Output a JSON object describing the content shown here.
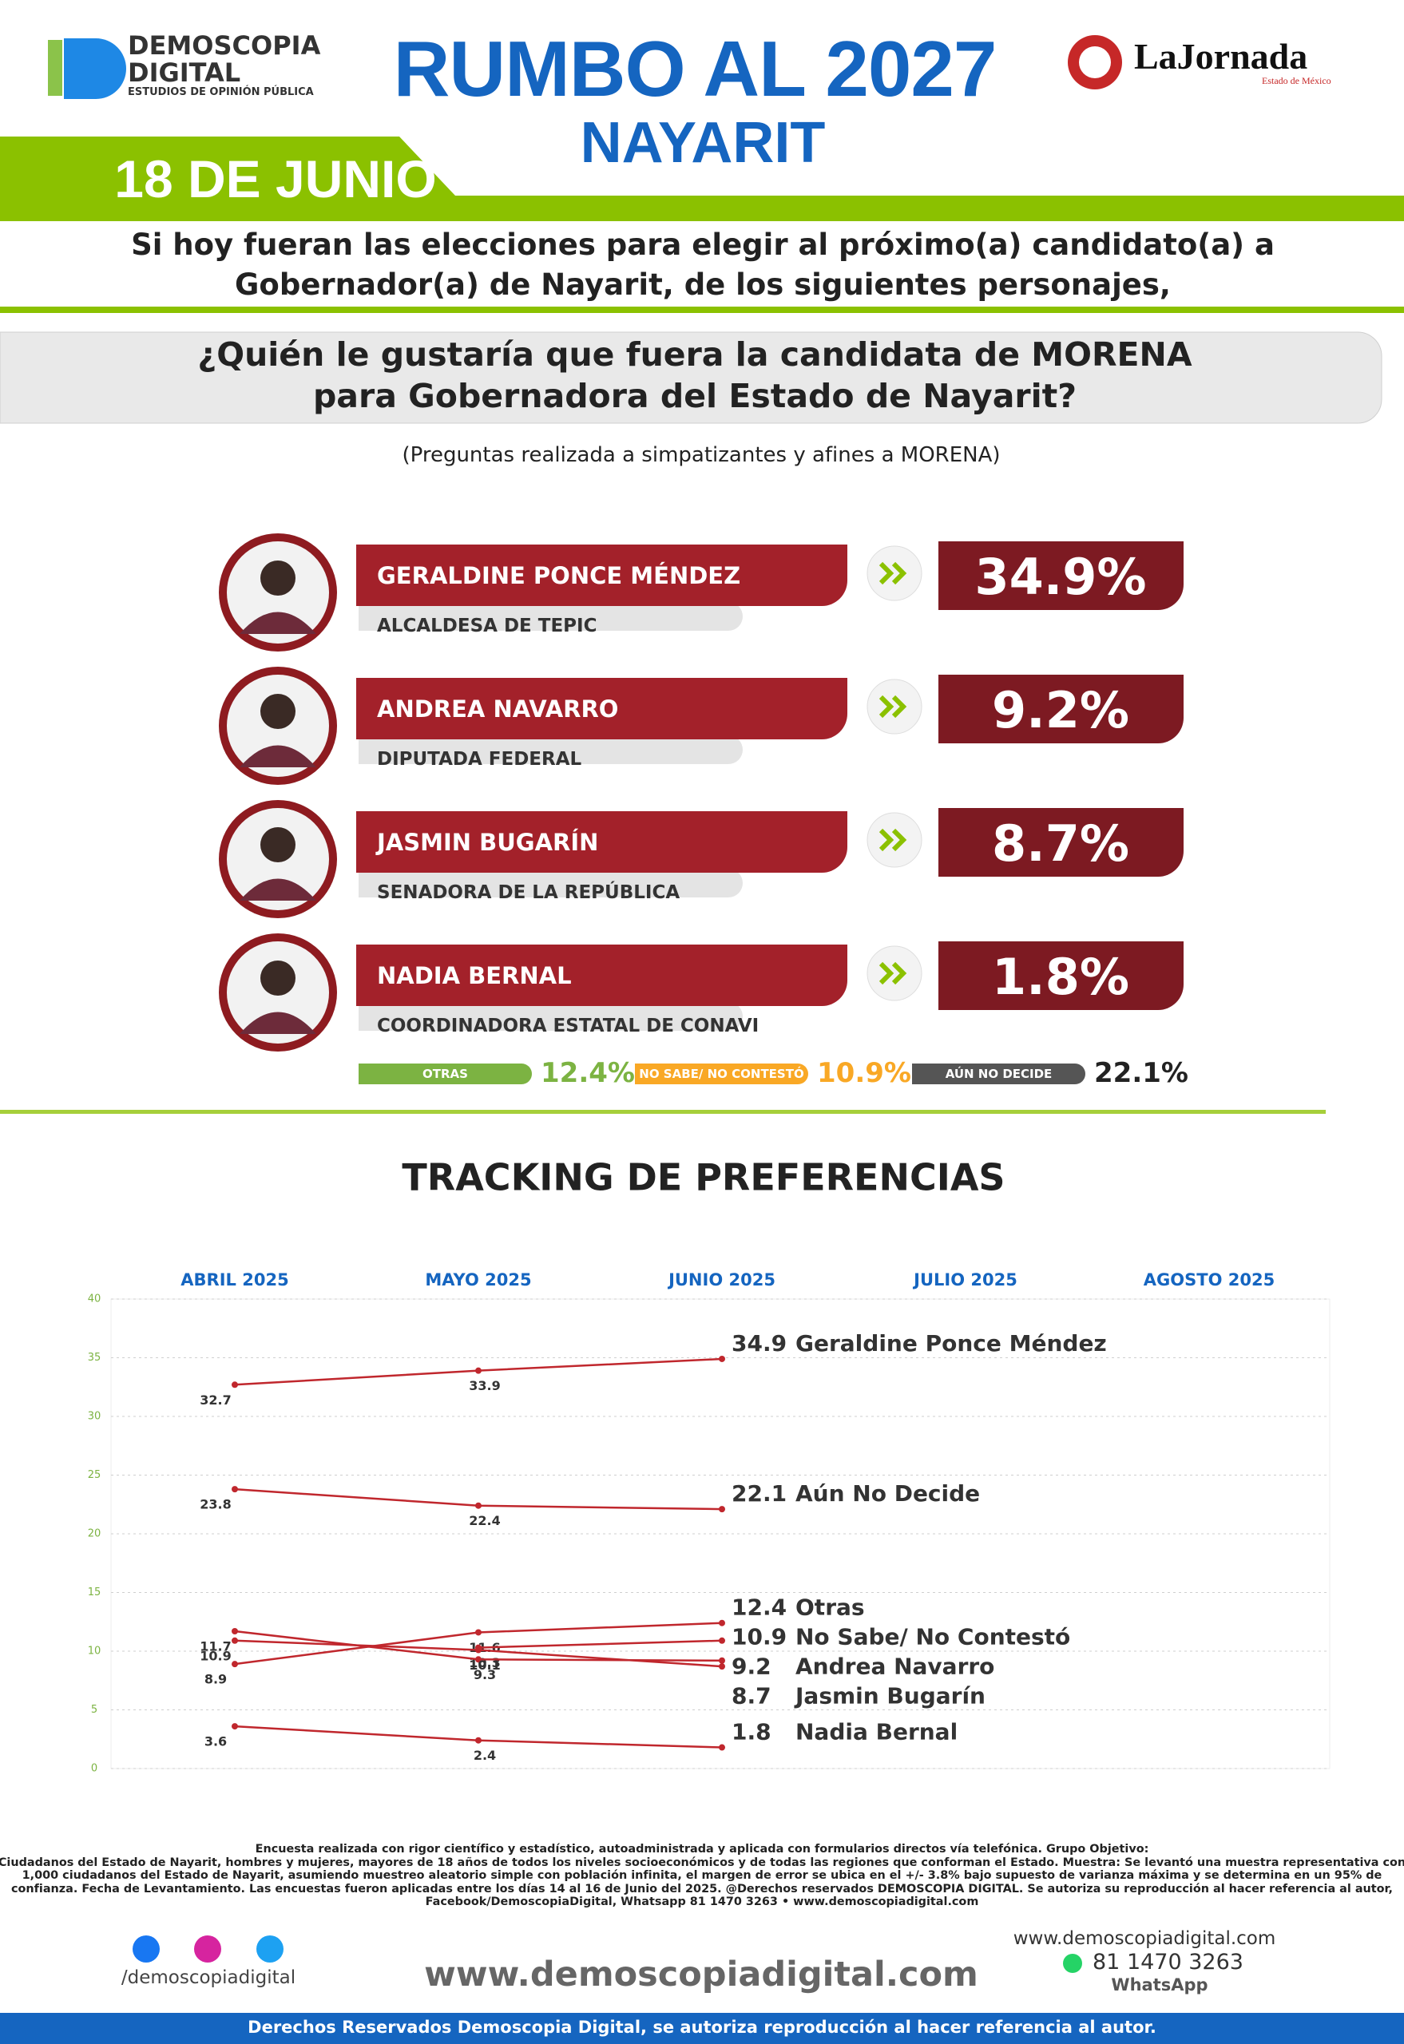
{
  "header": {
    "logo": [
      "DEMOSCOPIA",
      "DIGITAL"
    ],
    "logo_tagline": "ESTUDIOS DE OPINIÓN PÚBLICA",
    "title": "RUMBO AL 2027",
    "subtitle": "NAYARIT",
    "date": "18 DE JUNIO",
    "partner": "LaJornada",
    "partner_region": "Estado de México"
  },
  "intro": [
    "Si hoy fueran las elecciones para elegir al próximo(a) candidato(a) a",
    "Gobernador(a) de Nayarit, de los siguientes personajes,"
  ],
  "question": [
    "¿Quién le gustaría que fuera la candidata de MORENA",
    "para Gobernadora del Estado de Nayarit?"
  ],
  "note": "(Preguntas realizada a simpatizantes y afines a MORENA)",
  "candidates": [
    {
      "name": "GERALDINE PONCE MÉNDEZ",
      "role": "ALCALDESA DE TEPIC",
      "result": "34.9%"
    },
    {
      "name": "ANDREA NAVARRO",
      "role": "DIPUTADA FEDERAL",
      "result": "9.2%"
    },
    {
      "name": "JASMIN BUGARÍN",
      "role": "SENADORA DE LA REPÚBLICA",
      "result": "8.7%"
    },
    {
      "name": "NADIA BERNAL",
      "role": "COORDINADORA ESTATAL DE CONAVI",
      "result": "1.8%"
    }
  ],
  "others": [
    {
      "label": "OTRAS",
      "result": "12.4%",
      "color": "#7cb342"
    },
    {
      "label": "NO SABE/ NO CONTESTÓ",
      "result": "10.9%",
      "color": "#f9a825"
    },
    {
      "label": "AÚN NO DECIDE",
      "result": "22.1%",
      "color": "#555555"
    }
  ],
  "chart_data": {
    "type": "line",
    "title": "TRACKING DE PREFERENCIAS",
    "categories": [
      "ABRIL 2025",
      "MAYO 2025",
      "JUNIO 2025",
      "JULIO 2025",
      "AGOSTO 2025"
    ],
    "ylim": [
      0,
      40
    ],
    "yticks": [
      0,
      5,
      10,
      15,
      20,
      25,
      30,
      35,
      40
    ],
    "grid": true,
    "series": [
      {
        "name": "Geraldine Ponce Méndez",
        "color": "#c0272d",
        "values": [
          32.7,
          33.9,
          34.9,
          null,
          null
        ]
      },
      {
        "name": "Aún No Decide",
        "color": "#c0272d",
        "values": [
          23.8,
          22.4,
          22.1,
          null,
          null
        ]
      },
      {
        "name": "Otras",
        "color": "#c0272d",
        "values": [
          8.9,
          11.6,
          12.4,
          null,
          null
        ]
      },
      {
        "name": "No Sabe/ No Contestó",
        "color": "#c0272d",
        "values": [
          null,
          10.3,
          10.9,
          null,
          null
        ]
      },
      {
        "name": "Andrea Navarro",
        "color": "#c0272d",
        "values": [
          11.7,
          9.3,
          9.2,
          null,
          null
        ]
      },
      {
        "name": "Jasmin Bugarín",
        "color": "#c0272d",
        "values": [
          10.9,
          10.1,
          8.7,
          null,
          null
        ]
      },
      {
        "name": "Nadia Bernal",
        "color": "#c0272d",
        "values": [
          3.6,
          2.4,
          1.8,
          null,
          null
        ]
      }
    ]
  },
  "footer": {
    "methodology": [
      "Encuesta realizada con rigor científico y estadístico, autoadministrada y aplicada con formularios directos vía telefónica. Grupo Objetivo:",
      "Ciudadanos del Estado de Nayarit, hombres y mujeres, mayores de 18 años de todos los niveles socioeconómicos y de todas las regiones que conforman el Estado. Muestra: Se levantó una muestra representativa con",
      "1,000 ciudadanos del Estado de Nayarit, asumiendo muestreo aleatorio simple con población infinita, el margen de error se ubica en el +/- 3.8% bajo supuesto de varianza máxima y se determina en un 95% de",
      "confianza. Fecha de Levantamiento. Las encuestas fueron aplicadas entre los días 14 al 16 de Junio del 2025. @Derechos reservados DEMOSCOPIA DIGITAL. Se autoriza su reproducción al hacer referencia al autor,",
      "Facebook/DemoscopiaDigital, Whatsapp 81 1470 3263 • www.demoscopiadigital.com"
    ],
    "social": "/demoscopiadigital",
    "site": "www.demoscopiadigital.com",
    "contact_site": "www.demoscopiadigital.com",
    "phone": "81 1470 3263",
    "phone_app": "WhatsApp",
    "rights": "Derechos Reservados Demoscopia Digital, se autoriza reproducción al hacer referencia al autor."
  }
}
